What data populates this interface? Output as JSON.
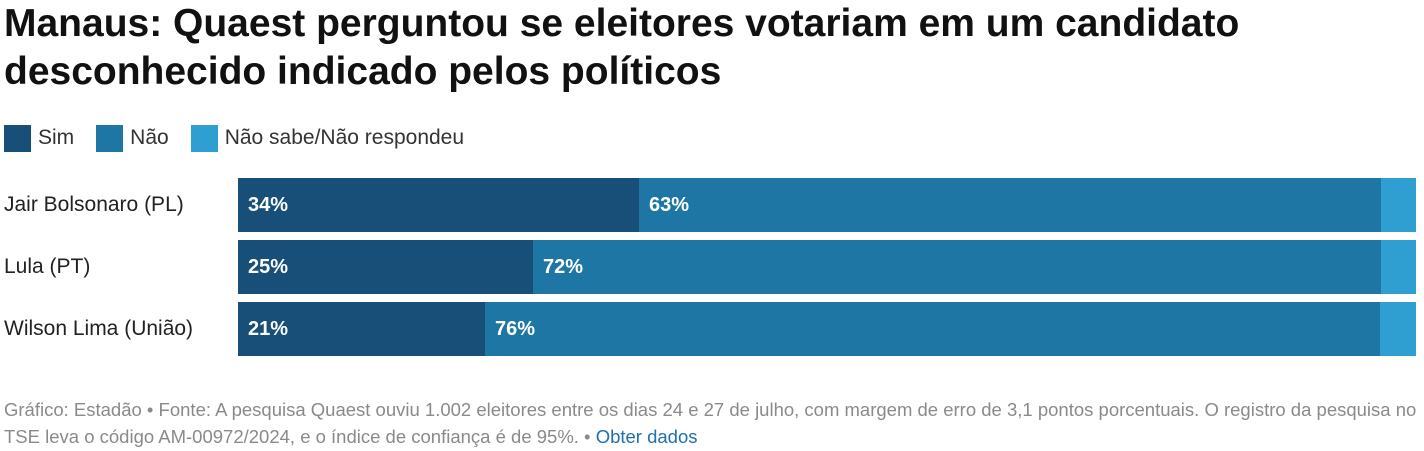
{
  "chart_data": {
    "type": "bar",
    "orientation": "horizontal",
    "stacked": true,
    "title": "Manaus: Quaest perguntou se eleitores votariam em um candidato desconhecido indicado pelos políticos",
    "categories": [
      "Jair Bolsonaro (PL)",
      "Lula (PT)",
      "Wilson Lima (União)"
    ],
    "series": [
      {
        "name": "Sim",
        "color": "#174f78",
        "values": [
          34,
          25,
          21
        ],
        "labels": [
          "34%",
          "25%",
          "21%"
        ]
      },
      {
        "name": "Não",
        "color": "#1e76a4",
        "values": [
          63,
          72,
          76
        ],
        "labels": [
          "63%",
          "72%",
          "76%"
        ]
      },
      {
        "name": "Não sabe/Não respondeu",
        "color": "#2e9fd0",
        "values": [
          3,
          3,
          3
        ],
        "labels": [
          "",
          "",
          ""
        ]
      }
    ],
    "xlim": [
      0,
      100
    ],
    "legend_position": "top-left",
    "grid": false
  },
  "footer": {
    "text": "Gráfico: Estadão • Fonte: A pesquisa Quaest ouviu 1.002 eleitores entre os dias 24 e 27 de julho, com margem de erro de 3,1 pontos porcentuais. O registro da pesquisa no TSE leva o código AM-00972/2024, e o índice de confiança é de 95%. • ",
    "link_label": "Obter dados"
  }
}
